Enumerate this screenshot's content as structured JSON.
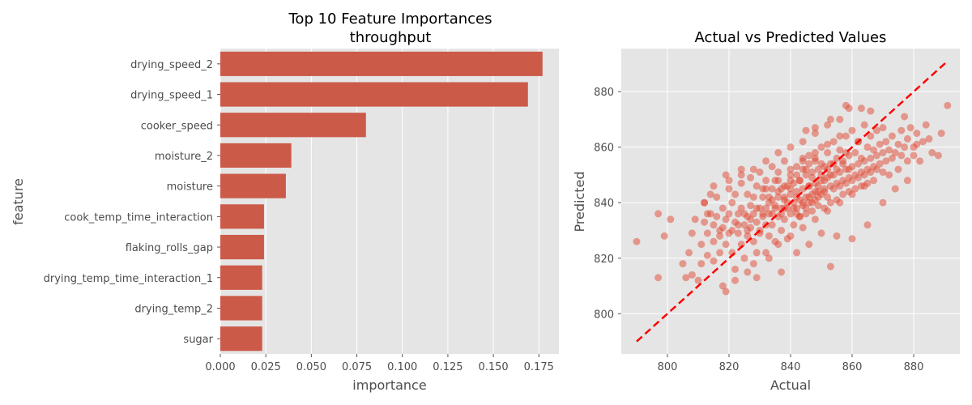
{
  "chart_data": [
    {
      "type": "bar",
      "orientation": "horizontal",
      "title": "Top 10 Feature Importances\nthroughput",
      "title_lines": [
        "Top 10 Feature Importances",
        "throughput"
      ],
      "xlabel": "importance",
      "ylabel": "feature",
      "xlim": [
        0,
        0.186
      ],
      "xticks": [
        0.0,
        0.025,
        0.05,
        0.075,
        0.1,
        0.125,
        0.15,
        0.175
      ],
      "xtick_labels": [
        "0.000",
        "0.025",
        "0.050",
        "0.075",
        "0.100",
        "0.125",
        "0.150",
        "0.175"
      ],
      "categories": [
        "drying_speed_2",
        "drying_speed_1",
        "cooker_speed",
        "moisture_2",
        "moisture",
        "cook_temp_time_interaction",
        "flaking_rolls_gap",
        "drying_temp_time_interaction_1",
        "drying_temp_2",
        "sugar"
      ],
      "values": [
        0.177,
        0.169,
        0.08,
        0.039,
        0.036,
        0.024,
        0.024,
        0.023,
        0.023,
        0.023
      ],
      "bar_color": "#cc5a49",
      "grid": true
    },
    {
      "type": "scatter",
      "title": "Actual vs Predicted Values",
      "xlabel": "Actual",
      "ylabel": "Predicted",
      "xlim": [
        785,
        895
      ],
      "ylim": [
        785.5,
        895.5
      ],
      "xticks": [
        800,
        820,
        840,
        860,
        880
      ],
      "yticks": [
        800,
        820,
        840,
        860,
        880
      ],
      "point_color": "#e24a33",
      "point_alpha": 0.5,
      "reference_line": {
        "x": [
          790,
          891
        ],
        "y": [
          790,
          891
        ],
        "color": "#ff0000",
        "style": "dashed"
      },
      "grid": true,
      "points": [
        [
          790,
          826
        ],
        [
          797,
          813
        ],
        [
          797,
          836
        ],
        [
          801,
          834
        ],
        [
          799,
          828
        ],
        [
          805,
          818
        ],
        [
          806,
          813
        ],
        [
          807,
          822
        ],
        [
          808,
          814
        ],
        [
          808,
          829
        ],
        [
          809,
          834
        ],
        [
          810,
          812
        ],
        [
          811,
          818
        ],
        [
          811,
          825
        ],
        [
          812,
          840
        ],
        [
          812,
          833
        ],
        [
          813,
          821
        ],
        [
          813,
          829
        ],
        [
          814,
          836
        ],
        [
          814,
          843
        ],
        [
          815,
          826
        ],
        [
          815,
          819
        ],
        [
          816,
          842
        ],
        [
          816,
          835
        ],
        [
          817,
          828
        ],
        [
          817,
          822
        ],
        [
          818,
          838
        ],
        [
          818,
          810
        ],
        [
          818,
          831
        ],
        [
          819,
          825
        ],
        [
          819,
          808
        ],
        [
          820,
          836
        ],
        [
          820,
          829
        ],
        [
          820,
          845
        ],
        [
          821,
          822
        ],
        [
          821,
          840
        ],
        [
          822,
          833
        ],
        [
          822,
          816
        ],
        [
          822,
          843
        ],
        [
          823,
          829
        ],
        [
          823,
          836
        ],
        [
          824,
          825
        ],
        [
          824,
          847
        ],
        [
          824,
          838
        ],
        [
          825,
          832
        ],
        [
          825,
          820
        ],
        [
          826,
          843
        ],
        [
          826,
          835
        ],
        [
          826,
          828
        ],
        [
          827,
          839
        ],
        [
          827,
          849
        ],
        [
          827,
          831
        ],
        [
          828,
          842
        ],
        [
          828,
          826
        ],
        [
          828,
          836
        ],
        [
          829,
          846
        ],
        [
          829,
          833
        ],
        [
          829,
          822
        ],
        [
          830,
          838
        ],
        [
          830,
          851
        ],
        [
          830,
          829
        ],
        [
          831,
          842
        ],
        [
          831,
          835
        ],
        [
          831,
          845
        ],
        [
          832,
          832
        ],
        [
          832,
          838
        ],
        [
          832,
          848
        ],
        [
          833,
          828
        ],
        [
          833,
          842
        ],
        [
          833,
          836
        ],
        [
          834,
          853
        ],
        [
          834,
          832
        ],
        [
          834,
          845
        ],
        [
          835,
          839
        ],
        [
          835,
          826
        ],
        [
          835,
          848
        ],
        [
          836,
          842
        ],
        [
          836,
          835
        ],
        [
          836,
          851
        ],
        [
          837,
          838
        ],
        [
          837,
          830
        ],
        [
          837,
          845
        ],
        [
          838,
          841
        ],
        [
          838,
          834
        ],
        [
          838,
          855
        ],
        [
          839,
          846
        ],
        [
          839,
          838
        ],
        [
          839,
          827
        ],
        [
          840,
          843
        ],
        [
          840,
          850
        ],
        [
          840,
          836
        ],
        [
          841,
          840
        ],
        [
          841,
          847
        ],
        [
          841,
          832
        ],
        [
          842,
          844
        ],
        [
          842,
          838
        ],
        [
          842,
          853
        ],
        [
          843,
          841
        ],
        [
          843,
          848
        ],
        [
          843,
          835
        ],
        [
          844,
          845
        ],
        [
          844,
          839
        ],
        [
          844,
          856
        ],
        [
          845,
          842
        ],
        [
          845,
          850
        ],
        [
          845,
          836
        ],
        [
          846,
          846
        ],
        [
          846,
          840
        ],
        [
          846,
          857
        ],
        [
          847,
          843
        ],
        [
          847,
          851
        ],
        [
          847,
          837
        ],
        [
          848,
          847
        ],
        [
          848,
          841
        ],
        [
          848,
          855
        ],
        [
          849,
          844
        ],
        [
          849,
          852
        ],
        [
          849,
          839
        ],
        [
          850,
          848
        ],
        [
          850,
          843
        ],
        [
          850,
          860
        ],
        [
          851,
          845
        ],
        [
          851,
          853
        ],
        [
          851,
          838
        ],
        [
          852,
          849
        ],
        [
          852,
          842
        ],
        [
          852,
          858
        ],
        [
          853,
          846
        ],
        [
          853,
          854
        ],
        [
          853,
          840
        ],
        [
          854,
          850
        ],
        [
          854,
          845
        ],
        [
          854,
          862
        ],
        [
          855,
          847
        ],
        [
          855,
          856
        ],
        [
          855,
          841
        ],
        [
          856,
          851
        ],
        [
          856,
          846
        ],
        [
          856,
          859
        ],
        [
          857,
          848
        ],
        [
          857,
          855
        ],
        [
          857,
          843
        ],
        [
          858,
          852
        ],
        [
          858,
          847
        ],
        [
          858,
          864
        ],
        [
          859,
          849
        ],
        [
          859,
          857
        ],
        [
          859,
          844
        ],
        [
          860,
          853
        ],
        [
          860,
          848
        ],
        [
          860,
          866
        ],
        [
          861,
          850
        ],
        [
          861,
          858
        ],
        [
          861,
          845
        ],
        [
          862,
          854
        ],
        [
          862,
          849
        ],
        [
          862,
          862
        ],
        [
          863,
          851
        ],
        [
          863,
          856
        ],
        [
          863,
          846
        ],
        [
          864,
          855
        ],
        [
          864,
          850
        ],
        [
          864,
          868
        ],
        [
          865,
          852
        ],
        [
          865,
          860
        ],
        [
          865,
          847
        ],
        [
          866,
          856
        ],
        [
          866,
          851
        ],
        [
          866,
          864
        ],
        [
          867,
          853
        ],
        [
          867,
          859
        ],
        [
          867,
          848
        ],
        [
          868,
          857
        ],
        [
          868,
          852
        ],
        [
          868,
          866
        ],
        [
          869,
          854
        ],
        [
          869,
          861
        ],
        [
          870,
          858
        ],
        [
          870,
          851
        ],
        [
          870,
          867
        ],
        [
          871,
          855
        ],
        [
          871,
          862
        ],
        [
          872,
          859
        ],
        [
          872,
          850
        ],
        [
          873,
          856
        ],
        [
          873,
          864
        ],
        [
          874,
          858
        ],
        [
          875,
          861
        ],
        [
          875,
          852
        ],
        [
          876,
          866
        ],
        [
          876,
          857
        ],
        [
          877,
          871
        ],
        [
          877,
          860
        ],
        [
          878,
          855
        ],
        [
          878,
          863
        ],
        [
          879,
          867
        ],
        [
          880,
          860
        ],
        [
          880,
          857
        ],
        [
          881,
          865
        ],
        [
          881,
          861
        ],
        [
          882,
          855
        ],
        [
          883,
          862
        ],
        [
          884,
          868
        ],
        [
          885,
          863
        ],
        [
          886,
          858
        ],
        [
          888,
          857
        ],
        [
          889,
          865
        ],
        [
          891,
          875
        ],
        [
          826,
          830
        ],
        [
          830,
          830
        ],
        [
          834,
          836
        ],
        [
          838,
          838
        ],
        [
          842,
          842
        ],
        [
          846,
          846
        ],
        [
          850,
          850
        ],
        [
          854,
          854
        ],
        [
          858,
          858
        ],
        [
          862,
          862
        ],
        [
          832,
          845
        ],
        [
          836,
          848
        ],
        [
          840,
          852
        ],
        [
          844,
          855
        ],
        [
          848,
          858
        ],
        [
          852,
          861
        ],
        [
          856,
          864
        ],
        [
          828,
          818
        ],
        [
          832,
          822
        ],
        [
          836,
          825
        ],
        [
          840,
          828
        ],
        [
          844,
          831
        ],
        [
          848,
          834
        ],
        [
          852,
          837
        ],
        [
          856,
          840
        ],
        [
          860,
          843
        ],
        [
          864,
          846
        ],
        [
          820,
          848
        ],
        [
          824,
          850
        ],
        [
          828,
          852
        ],
        [
          832,
          855
        ],
        [
          836,
          858
        ],
        [
          840,
          860
        ],
        [
          844,
          862
        ],
        [
          848,
          865
        ],
        [
          852,
          868
        ],
        [
          856,
          870
        ],
        [
          859,
          874
        ],
        [
          866,
          873
        ],
        [
          863,
          874
        ],
        [
          858,
          875
        ],
        [
          853,
          870
        ],
        [
          848,
          867
        ],
        [
          845,
          866
        ],
        [
          855,
          828
        ],
        [
          853,
          817
        ],
        [
          860,
          827
        ],
        [
          865,
          832
        ],
        [
          870,
          840
        ],
        [
          874,
          845
        ],
        [
          878,
          848
        ],
        [
          822,
          812
        ],
        [
          826,
          815
        ],
        [
          829,
          813
        ],
        [
          833,
          820
        ],
        [
          837,
          815
        ],
        [
          842,
          822
        ],
        [
          846,
          825
        ],
        [
          850,
          829
        ],
        [
          824,
          852
        ],
        [
          819,
          850
        ],
        [
          815,
          846
        ],
        [
          812,
          840
        ],
        [
          842,
          836
        ],
        [
          844,
          840
        ],
        [
          846,
          842
        ],
        [
          848,
          844
        ],
        [
          840,
          845
        ],
        [
          838,
          842
        ],
        [
          843,
          848
        ],
        [
          845,
          852
        ],
        [
          847,
          849
        ],
        [
          849,
          846
        ],
        [
          851,
          844
        ],
        [
          839,
          840
        ],
        [
          837,
          836
        ],
        [
          835,
          838
        ],
        [
          833,
          840
        ],
        [
          841,
          838
        ],
        [
          843,
          835
        ],
        [
          845,
          838
        ],
        [
          847,
          840
        ],
        [
          849,
          842
        ],
        [
          851,
          848
        ],
        [
          853,
          850
        ],
        [
          855,
          852
        ],
        [
          857,
          854
        ],
        [
          859,
          852
        ],
        [
          834,
          841
        ],
        [
          836,
          844
        ],
        [
          838,
          846
        ],
        [
          840,
          848
        ],
        [
          842,
          850
        ],
        [
          844,
          852
        ],
        [
          846,
          854
        ],
        [
          848,
          856
        ],
        [
          850,
          854
        ],
        [
          852,
          852
        ],
        [
          831,
          836
        ],
        [
          829,
          838
        ],
        [
          827,
          834
        ],
        [
          825,
          836
        ],
        [
          823,
          832
        ],
        [
          821,
          830
        ],
        [
          819,
          834
        ],
        [
          817,
          830
        ],
        [
          815,
          832
        ],
        [
          813,
          836
        ]
      ]
    }
  ]
}
